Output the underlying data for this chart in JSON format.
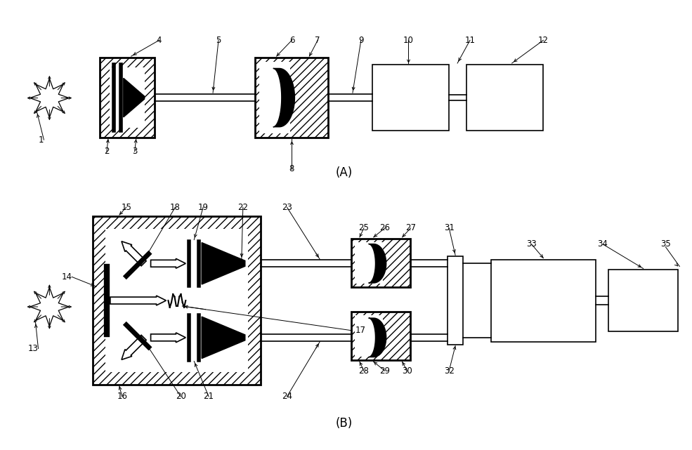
{
  "bg_color": "#ffffff",
  "figsize": [
    9.85,
    6.41
  ],
  "dpi": 100
}
